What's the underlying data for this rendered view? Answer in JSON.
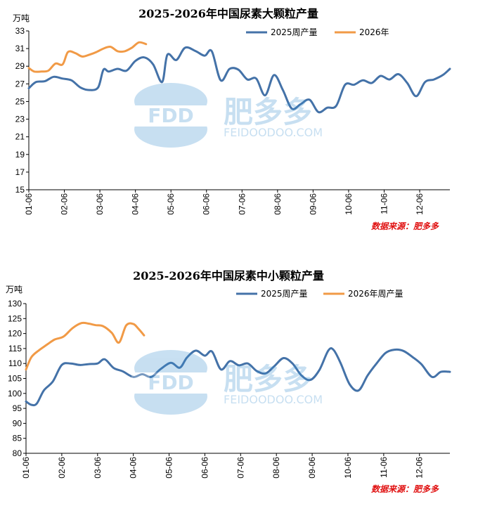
{
  "colors": {
    "series_2025": "#4472a8",
    "series_2026": "#f19a46",
    "source": "#e01010",
    "watermark": "#3a8fd0"
  },
  "watermark": {
    "logo_text": "FDD",
    "brand_cn": "肥多多",
    "brand_url": "FEIDOODOO.COM"
  },
  "chart_data": [
    {
      "type": "line",
      "title": "2025-2026年中国尿素大颗粒产量",
      "unit": "万吨",
      "ylim": [
        15,
        33
      ],
      "yticks": [
        15,
        17,
        19,
        21,
        23,
        25,
        27,
        29,
        31,
        33
      ],
      "x_range": [
        1,
        12.85
      ],
      "xtick_labels": [
        "01-06",
        "02-06",
        "03-06",
        "04-06",
        "05-06",
        "06-06",
        "07-06",
        "08-06",
        "09-06",
        "10-06",
        "11-06",
        "12-06"
      ],
      "legend": [
        "2025周产量",
        "2026年"
      ],
      "source": "数据来源：肥多多",
      "series": [
        {
          "name": "2025周产量",
          "x": [
            1.0,
            1.2,
            1.45,
            1.7,
            1.95,
            2.2,
            2.45,
            2.7,
            2.95,
            3.1,
            3.25,
            3.5,
            3.75,
            4.0,
            4.25,
            4.5,
            4.75,
            4.9,
            5.15,
            5.4,
            5.7,
            5.95,
            6.15,
            6.4,
            6.65,
            6.9,
            7.15,
            7.4,
            7.65,
            7.9,
            8.15,
            8.4,
            8.65,
            8.9,
            9.15,
            9.4,
            9.65,
            9.9,
            10.15,
            10.4,
            10.65,
            10.9,
            11.15,
            11.4,
            11.65,
            11.9,
            12.15,
            12.4,
            12.65,
            12.85
          ],
          "y": [
            26.5,
            27.2,
            27.3,
            27.8,
            27.6,
            27.4,
            26.6,
            26.3,
            26.6,
            28.6,
            28.4,
            28.7,
            28.5,
            29.6,
            30.0,
            29.2,
            27.2,
            30.3,
            29.7,
            31.1,
            30.7,
            30.2,
            30.7,
            27.4,
            28.7,
            28.6,
            27.5,
            27.6,
            25.7,
            28.0,
            26.3,
            24.2,
            24.7,
            25.2,
            23.8,
            24.3,
            24.5,
            26.9,
            26.9,
            27.4,
            27.1,
            27.9,
            27.5,
            28.1,
            27.1,
            25.6,
            27.2,
            27.5,
            28.0,
            28.7
          ]
        },
        {
          "name": "2026年",
          "x": [
            1.0,
            1.15,
            1.35,
            1.55,
            1.75,
            1.95,
            2.1,
            2.3,
            2.5,
            2.7,
            2.9,
            3.1,
            3.3,
            3.5,
            3.7,
            3.9,
            4.1,
            4.3
          ],
          "y": [
            28.8,
            28.4,
            28.4,
            28.5,
            29.3,
            29.2,
            30.6,
            30.5,
            30.1,
            30.3,
            30.6,
            31.0,
            31.2,
            30.7,
            30.7,
            31.1,
            31.7,
            31.5
          ]
        }
      ]
    },
    {
      "type": "line",
      "title": "2025-2026年中国尿素中小颗粒产量",
      "unit": "万吨",
      "ylim": [
        80,
        130
      ],
      "yticks": [
        80,
        85,
        90,
        95,
        100,
        105,
        110,
        115,
        120,
        125,
        130
      ],
      "x_range": [
        1,
        12.85
      ],
      "xtick_labels": [
        "01-06",
        "02-06",
        "03-06",
        "04-06",
        "05-06",
        "06-06",
        "07-06",
        "08-06",
        "09-06",
        "10-06",
        "11-06",
        "12-06"
      ],
      "legend": [
        "2025周产量",
        "2026年周产量"
      ],
      "source": "数据来源：肥多多",
      "series": [
        {
          "name": "2025周产量",
          "x": [
            1.0,
            1.15,
            1.3,
            1.5,
            1.75,
            2.0,
            2.25,
            2.5,
            2.75,
            3.0,
            3.2,
            3.45,
            3.7,
            4.0,
            4.25,
            4.5,
            4.75,
            5.05,
            5.3,
            5.5,
            5.75,
            6.0,
            6.2,
            6.45,
            6.7,
            6.95,
            7.2,
            7.45,
            7.7,
            7.95,
            8.2,
            8.45,
            8.7,
            8.95,
            9.2,
            9.45,
            9.6,
            9.8,
            10.05,
            10.3,
            10.55,
            10.8,
            11.05,
            11.3,
            11.55,
            11.8,
            12.05,
            12.35,
            12.6,
            12.85
          ],
          "y": [
            97.3,
            96.2,
            96.6,
            101.0,
            104.0,
            109.5,
            110.0,
            109.5,
            109.8,
            110.0,
            111.4,
            108.5,
            107.4,
            105.5,
            106.4,
            105.5,
            108.0,
            110.2,
            108.6,
            112.0,
            114.3,
            112.6,
            114.0,
            108.0,
            110.8,
            109.4,
            110.0,
            107.5,
            106.7,
            109.2,
            111.8,
            110.0,
            106.0,
            104.5,
            107.8,
            114.3,
            114.5,
            110.0,
            103.0,
            101.0,
            106.0,
            110.0,
            113.5,
            114.6,
            114.2,
            112.2,
            109.8,
            105.5,
            107.2,
            107.2
          ]
        },
        {
          "name": "2026年周产量",
          "x": [
            1.0,
            1.15,
            1.35,
            1.6,
            1.8,
            2.05,
            2.3,
            2.55,
            2.75,
            2.95,
            3.15,
            3.4,
            3.6,
            3.8,
            4.0,
            4.15,
            4.3
          ],
          "y": [
            108.0,
            112.1,
            114.3,
            116.4,
            118.0,
            119.0,
            121.8,
            123.5,
            123.3,
            122.8,
            122.5,
            120.2,
            117.0,
            122.7,
            123.2,
            121.5,
            119.4
          ]
        }
      ]
    }
  ]
}
